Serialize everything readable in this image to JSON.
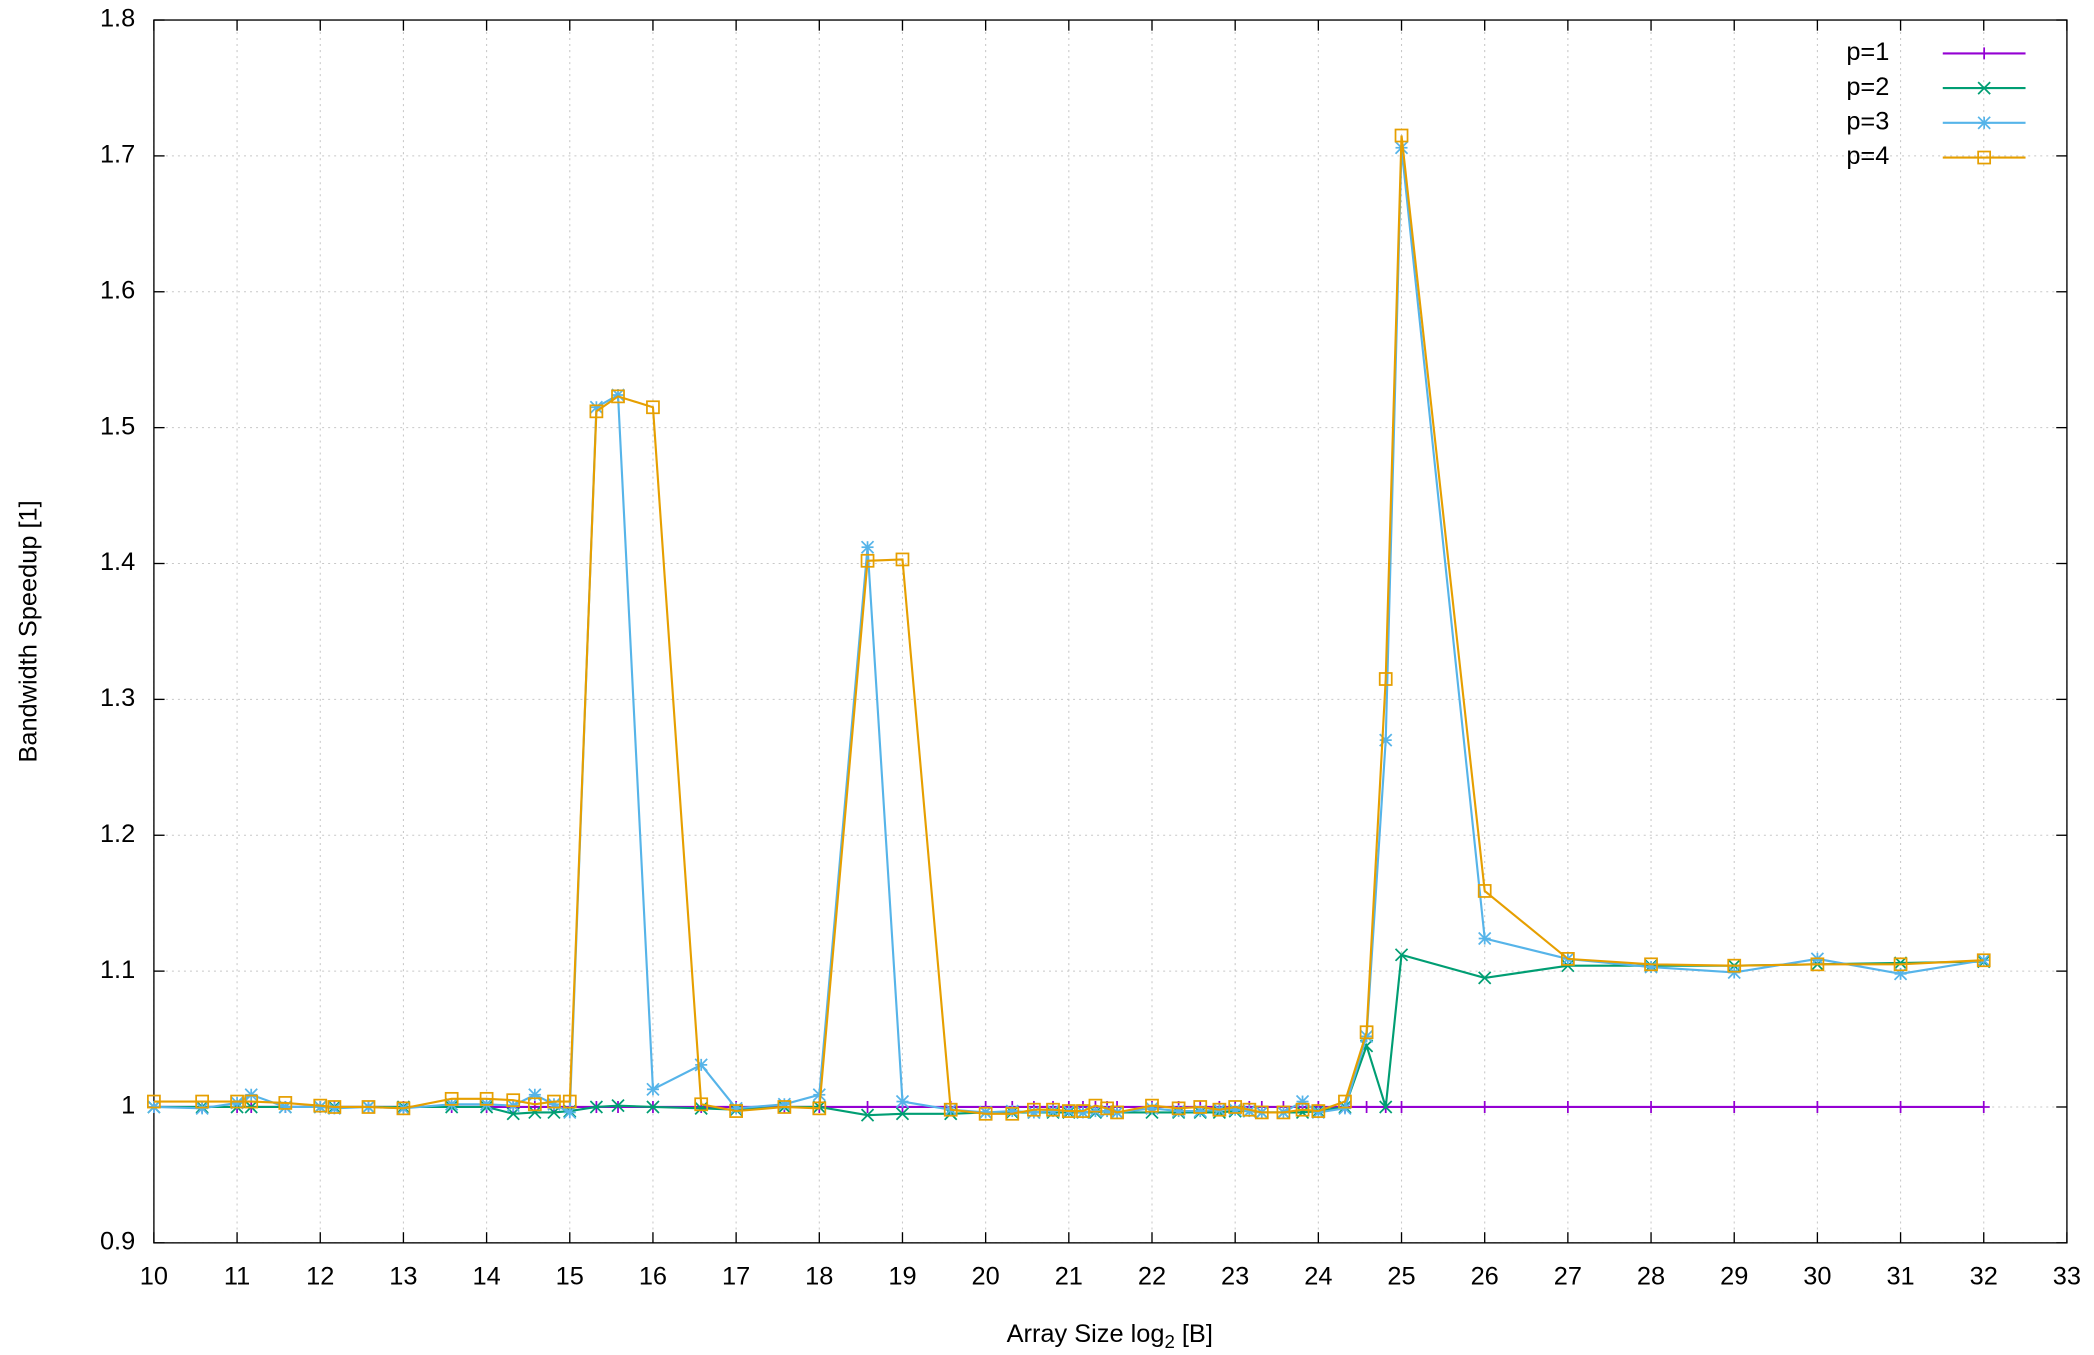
{
  "chart_data": {
    "type": "line",
    "xlabel": "Array Size log",
    "xlabel_sub": "2",
    "xlabel_suffix": "[B]",
    "ylabel": "Bandwidth Speedup [1]",
    "x": [
      10,
      10.58,
      11,
      11.17,
      11.58,
      12,
      12.17,
      12.58,
      13,
      13.58,
      14,
      14.32,
      14.58,
      14.81,
      15,
      15.32,
      15.58,
      16,
      16.58,
      17,
      17.58,
      18,
      18.58,
      19,
      19.58,
      20,
      20.32,
      20.58,
      20.81,
      21,
      21.17,
      21.32,
      21.46,
      21.58,
      22,
      22.32,
      22.58,
      22.81,
      23,
      23.17,
      23.32,
      23.58,
      23.81,
      24,
      24.32,
      24.58,
      24.81,
      25,
      26,
      27,
      28,
      29,
      30,
      31,
      32
    ],
    "series": [
      {
        "name": "p=1",
        "color": "#9400d3",
        "marker": "plus",
        "values": [
          1,
          1,
          1,
          1,
          1,
          1,
          1,
          1,
          1,
          1,
          1,
          1,
          1,
          1,
          1,
          1,
          1,
          1,
          1,
          1,
          1,
          1,
          1,
          1,
          1,
          1,
          1,
          1,
          1,
          1,
          1,
          1,
          1,
          1,
          1,
          1,
          1,
          1,
          1,
          1,
          1,
          1,
          1,
          1,
          1,
          1,
          1,
          1,
          1,
          1,
          1,
          1,
          1,
          1,
          1
        ]
      },
      {
        "name": "p=2",
        "color": "#009e73",
        "marker": "cross",
        "values": [
          1,
          1,
          1,
          1,
          1,
          1,
          1,
          1,
          1,
          1,
          1,
          0.995,
          0.996,
          0.996,
          0.997,
          1.0,
          1.001,
          1.0,
          0.999,
          0.998,
          1.0,
          1.0,
          0.994,
          0.995,
          0.995,
          0.996,
          0.996,
          0.996,
          0.996,
          0.996,
          0.996,
          0.996,
          0.997,
          0.996,
          0.996,
          0.996,
          0.996,
          0.996,
          0.997,
          0.997,
          0.996,
          0.996,
          0.996,
          0.997,
          1.0,
          1.045,
          1.0,
          1.112,
          1.095,
          1.104,
          1.104,
          1.104,
          1.105,
          1.106,
          1.107
        ]
      },
      {
        "name": "p=3",
        "color": "#56b4e9",
        "marker": "star",
        "values": [
          1.0,
          0.999,
          1.003,
          1.009,
          1.0,
          1.0,
          0.999,
          1.0,
          0.999,
          1.002,
          1.002,
          1.001,
          1.009,
          1.002,
          0.996,
          1.515,
          1.524,
          1.013,
          1.031,
          0.999,
          1.002,
          1.009,
          1.412,
          1.004,
          0.998,
          0.996,
          0.997,
          0.996,
          0.997,
          0.997,
          0.996,
          0.997,
          0.997,
          0.996,
          0.999,
          0.997,
          0.997,
          0.998,
          0.998,
          0.997,
          0.996,
          0.996,
          1.004,
          0.996,
          0.999,
          1.052,
          1.27,
          1.706,
          1.124,
          1.109,
          1.103,
          1.099,
          1.109,
          1.098,
          1.108
        ]
      },
      {
        "name": "p=4",
        "color": "#e69f00",
        "marker": "square",
        "values": [
          1.004,
          1.004,
          1.004,
          1.004,
          1.003,
          1.001,
          1.0,
          1.0,
          0.999,
          1.006,
          1.006,
          1.005,
          1.002,
          1.004,
          1.004,
          1.512,
          1.523,
          1.515,
          1.002,
          0.997,
          1.0,
          0.999,
          1.402,
          1.403,
          0.998,
          0.995,
          0.995,
          0.998,
          0.998,
          0.997,
          0.997,
          1.001,
          0.999,
          0.996,
          1.001,
          0.999,
          1.0,
          0.998,
          1.0,
          0.998,
          0.996,
          0.996,
          0.998,
          0.997,
          1.004,
          1.055,
          1.315,
          1.715,
          1.159,
          1.109,
          1.105,
          1.104,
          1.105,
          1.105,
          1.108
        ]
      }
    ],
    "xlim": [
      10,
      33
    ],
    "xticks": [
      10,
      11,
      12,
      13,
      14,
      15,
      16,
      17,
      18,
      19,
      20,
      21,
      22,
      23,
      24,
      25,
      26,
      27,
      28,
      29,
      30,
      31,
      32,
      33
    ],
    "ylim": [
      0.9,
      1.8
    ],
    "yticks": [
      0.9,
      1,
      1.1,
      1.2,
      1.3,
      1.4,
      1.5,
      1.6,
      1.7,
      1.8
    ],
    "grid": true,
    "legend": "top-right"
  }
}
